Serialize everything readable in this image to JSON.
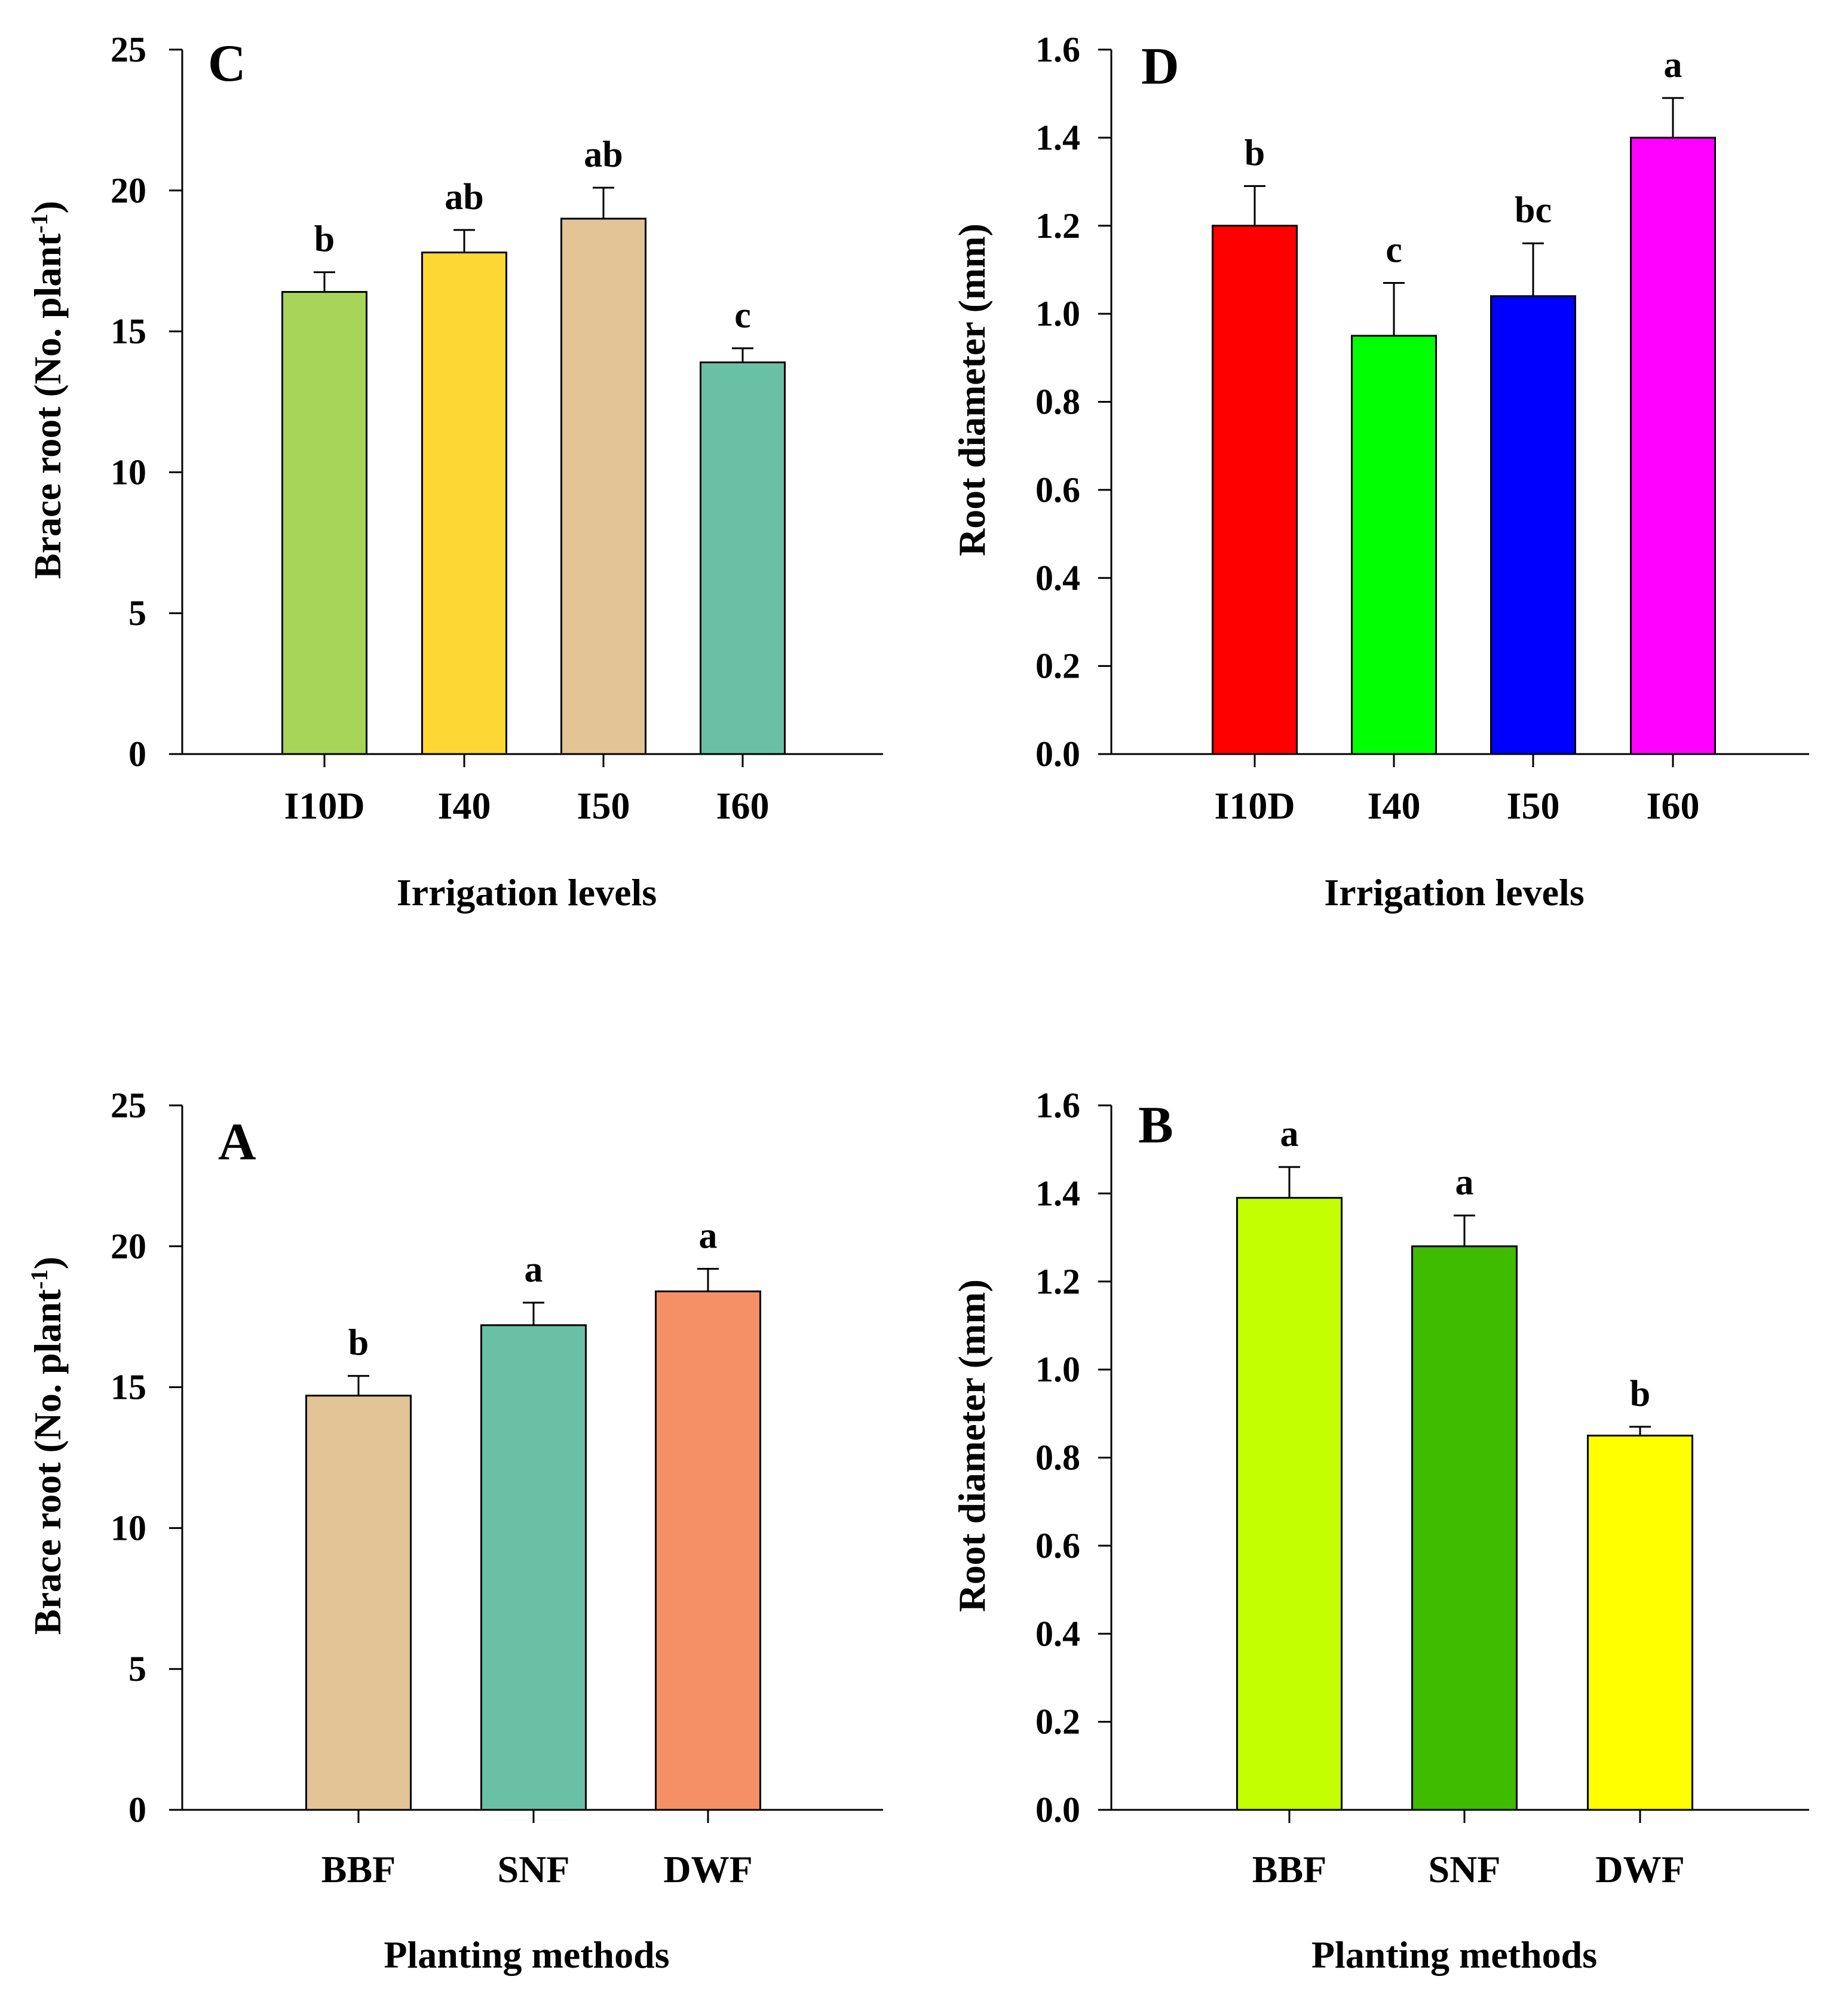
{
  "chart_data": [
    {
      "panel": "C",
      "type": "bar",
      "categories": [
        "I10D",
        "I40",
        "I50",
        "I60"
      ],
      "values": [
        16.4,
        17.8,
        19.0,
        13.9
      ],
      "errors": [
        0.7,
        0.8,
        1.1,
        0.5
      ],
      "significance": [
        "b",
        "ab",
        "ab",
        "c"
      ],
      "colors": [
        "#a6d55a",
        "#fdd835",
        "#e2c497",
        "#6ac0a5"
      ],
      "xlabel": "Irrigation levels",
      "ylabel": "Brace root (No. plant",
      "ylabel_sup": "-1",
      "ylabel_end": ")",
      "ylim": [
        0,
        25
      ],
      "yticks": [
        0,
        5,
        10,
        15,
        20,
        25
      ],
      "ytick_labels": [
        "0",
        "5",
        "10",
        "15",
        "20",
        "25"
      ]
    },
    {
      "panel": "D",
      "type": "bar",
      "categories": [
        "I10D",
        "I40",
        "I50",
        "I60"
      ],
      "values": [
        1.2,
        0.95,
        1.04,
        1.4
      ],
      "errors": [
        0.09,
        0.12,
        0.12,
        0.09
      ],
      "significance": [
        "b",
        "c",
        "bc",
        "a"
      ],
      "colors": [
        "#ff0000",
        "#00ff00",
        "#0000ff",
        "#ff00ff"
      ],
      "xlabel": "Irrigation levels",
      "ylabel": "Root diameter (mm)",
      "ylim": [
        0,
        1.6
      ],
      "yticks": [
        0,
        0.2,
        0.4,
        0.6,
        0.8,
        1.0,
        1.2,
        1.4,
        1.6
      ],
      "ytick_labels": [
        "0.0",
        "0.2",
        "0.4",
        "0.6",
        "0.8",
        "1.0",
        "1.2",
        "1.4",
        "1.6"
      ]
    },
    {
      "panel": "A",
      "type": "bar",
      "categories": [
        "BBF",
        "SNF",
        "DWF"
      ],
      "values": [
        14.7,
        17.2,
        18.4
      ],
      "errors": [
        0.7,
        0.8,
        0.8
      ],
      "significance": [
        "b",
        "a",
        "a"
      ],
      "colors": [
        "#e2c497",
        "#6ac0a5",
        "#f59066"
      ],
      "xlabel": "Planting methods",
      "ylabel": "Brace root (No. plant",
      "ylabel_sup": "-1",
      "ylabel_end": ")",
      "ylim": [
        0,
        25
      ],
      "yticks": [
        0,
        5,
        10,
        15,
        20,
        25
      ],
      "ytick_labels": [
        "0",
        "5",
        "10",
        "15",
        "20",
        "25"
      ]
    },
    {
      "panel": "B",
      "type": "bar",
      "categories": [
        "BBF",
        "SNF",
        "DWF"
      ],
      "values": [
        1.39,
        1.28,
        0.85
      ],
      "errors": [
        0.07,
        0.07,
        0.02
      ],
      "significance": [
        "a",
        "a",
        "b"
      ],
      "colors": [
        "#c3ff00",
        "#3fbb00",
        "#ffff00"
      ],
      "xlabel": "Planting methods",
      "ylabel": "Root diameter (mm)",
      "ylim": [
        0,
        1.6
      ],
      "yticks": [
        0,
        0.2,
        0.4,
        0.6,
        0.8,
        1.0,
        1.2,
        1.4,
        1.6
      ],
      "ytick_labels": [
        "0.0",
        "0.2",
        "0.4",
        "0.6",
        "0.8",
        "1.0",
        "1.2",
        "1.4",
        "1.6"
      ]
    }
  ]
}
